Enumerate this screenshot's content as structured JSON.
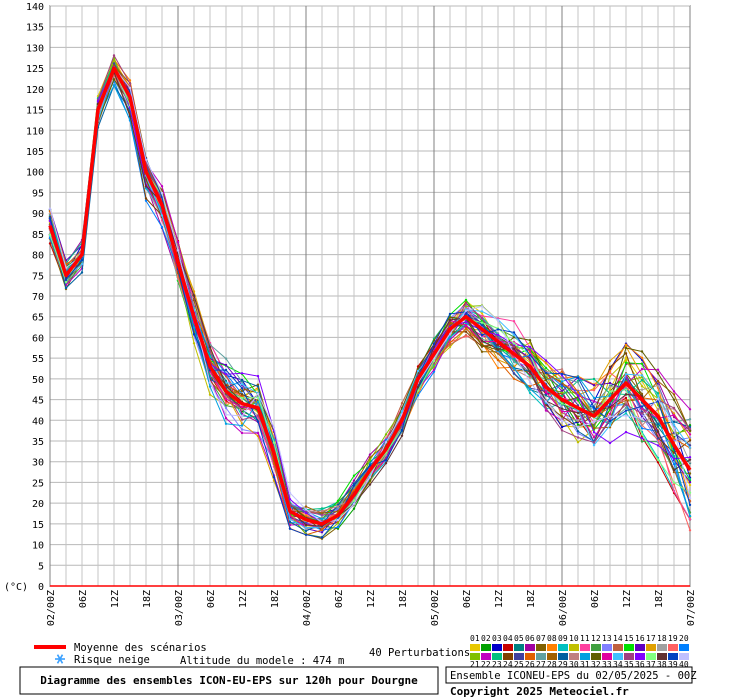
{
  "chart_data": {
    "type": "line",
    "y_unit_label": "(°C)",
    "ylim": [
      0,
      140
    ],
    "y_ticks": [
      0,
      5,
      10,
      15,
      20,
      25,
      30,
      35,
      40,
      45,
      50,
      55,
      60,
      65,
      70,
      75,
      80,
      85,
      90,
      95,
      100,
      105,
      110,
      115,
      120,
      125,
      130,
      135,
      140
    ],
    "x_step_hours": 3,
    "x_ticks": [
      {
        "h": 0,
        "label": "02/00Z"
      },
      {
        "h": 6,
        "label": "06Z"
      },
      {
        "h": 12,
        "label": "12Z"
      },
      {
        "h": 18,
        "label": "18Z"
      },
      {
        "h": 24,
        "label": "03/00Z"
      },
      {
        "h": 30,
        "label": "06Z"
      },
      {
        "h": 36,
        "label": "12Z"
      },
      {
        "h": 42,
        "label": "18Z"
      },
      {
        "h": 48,
        "label": "04/00Z"
      },
      {
        "h": 54,
        "label": "06Z"
      },
      {
        "h": 60,
        "label": "12Z"
      },
      {
        "h": 66,
        "label": "18Z"
      },
      {
        "h": 72,
        "label": "05/00Z"
      },
      {
        "h": 78,
        "label": "06Z"
      },
      {
        "h": 84,
        "label": "12Z"
      },
      {
        "h": 90,
        "label": "18Z"
      },
      {
        "h": 96,
        "label": "06/00Z"
      },
      {
        "h": 102,
        "label": "06Z"
      },
      {
        "h": 108,
        "label": "12Z"
      },
      {
        "h": 114,
        "label": "18Z"
      },
      {
        "h": 120,
        "label": "07/00Z"
      }
    ],
    "mean_series": {
      "name": "Moyenne des scénarios",
      "color": "#ff0000",
      "x": [
        0,
        3,
        6,
        9,
        12,
        15,
        18,
        21,
        24,
        27,
        30,
        33,
        36,
        39,
        42,
        45,
        48,
        51,
        54,
        57,
        60,
        63,
        66,
        69,
        72,
        75,
        78,
        81,
        84,
        87,
        90,
        93,
        96,
        99,
        102,
        105,
        108,
        111,
        114,
        117,
        120
      ],
      "values": [
        87,
        75,
        80,
        115,
        125,
        118,
        100,
        92,
        78,
        65,
        53,
        47,
        44,
        43,
        32,
        18,
        16,
        15,
        17,
        22,
        28,
        33,
        40,
        50,
        56,
        62,
        65,
        62,
        59,
        56,
        53,
        48,
        45,
        43,
        41,
        45,
        49,
        45,
        41,
        34,
        28
      ]
    },
    "members_count": 40,
    "member_colors": [
      "#e8c800",
      "#00a000",
      "#0000c8",
      "#c80000",
      "#008080",
      "#a000a0",
      "#806000",
      "#ff8000",
      "#00c0c0",
      "#c0c000",
      "#ff40a0",
      "#40a040",
      "#8080ff",
      "#c06040",
      "#00e000",
      "#6000c0",
      "#e0a000",
      "#a0a0a0",
      "#ff6060",
      "#0080ff",
      "#80c000",
      "#c000c0",
      "#00c080",
      "#804000",
      "#4040a0",
      "#e06000",
      "#60a0a0",
      "#a06000",
      "#0060a0",
      "#c08080",
      "#00a0e0",
      "#606000",
      "#e000a0",
      "#40c0ff",
      "#a04080",
      "#8000ff",
      "#80ff80",
      "#603030",
      "#0040c0",
      "#c0c0ff"
    ],
    "legend": {
      "mean_label": "Moyenne des scénarios",
      "snow_label": "Risque neige",
      "altitude_label": "Altitude du modele : 474 m",
      "perturbations_label": "40 Perturbations",
      "swatch_numbers_top": [
        "01",
        "02",
        "03",
        "04",
        "05",
        "06",
        "07",
        "08",
        "09",
        "10",
        "11",
        "12",
        "13",
        "14",
        "15",
        "16",
        "17",
        "18",
        "19",
        "20"
      ],
      "swatch_numbers_bottom": [
        "21",
        "22",
        "23",
        "24",
        "25",
        "26",
        "27",
        "28",
        "29",
        "30",
        "31",
        "32",
        "33",
        "34",
        "35",
        "36",
        "37",
        "38",
        "39",
        "40"
      ]
    },
    "footer": {
      "title": "Diagramme des ensembles ICON-EU-EPS sur 120h pour Dourgne",
      "run_info": "Ensemble ICONEU-EPS du 02/05/2025 - 00Z",
      "copyright": "Copyright 2025 Meteociel.fr"
    }
  }
}
